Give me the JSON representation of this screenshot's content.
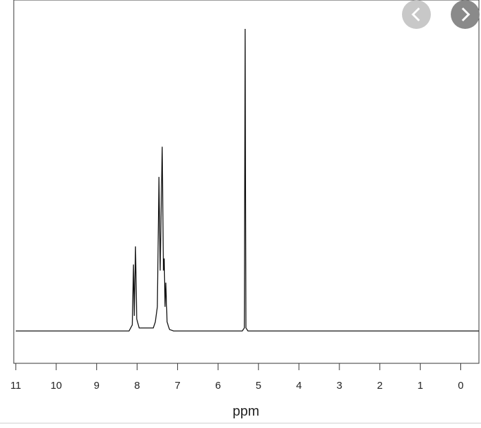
{
  "chart_data": {
    "type": "line",
    "x_label": "ppm",
    "xlim": [
      11.05,
      -0.45
    ],
    "xticks": [
      11,
      10,
      9,
      8,
      7,
      6,
      5,
      4,
      3,
      2,
      1,
      0
    ],
    "ylim": [
      0,
      100
    ],
    "series": [
      {
        "color": "#111111",
        "x": [
          11.0,
          8.2,
          8.12,
          8.09,
          8.07,
          8.04,
          8.01,
          7.95,
          7.6,
          7.55,
          7.5,
          7.46,
          7.43,
          7.4,
          7.38,
          7.35,
          7.33,
          7.31,
          7.29,
          7.26,
          7.2,
          7.1,
          5.4,
          5.35,
          5.33,
          5.31,
          5.26,
          -0.45
        ],
        "values": [
          0,
          0,
          2,
          22,
          5,
          28,
          4,
          1,
          1,
          3,
          8,
          51,
          20,
          45,
          61,
          20,
          24,
          8,
          16,
          3,
          0.5,
          0,
          0,
          1,
          100,
          1,
          0,
          0
        ]
      }
    ]
  }
}
